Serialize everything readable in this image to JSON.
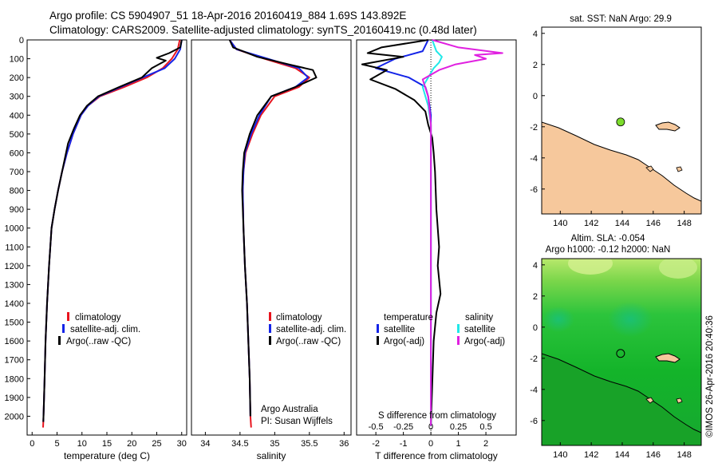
{
  "title_line1": "Argo profile: CS 5904907_51 18-Apr-2016 20160419_884 1.69S 143.892E",
  "title_line2": "Climatology: CARS2009. Satellite-adjusted climatology: synTS_20160419.nc (0.48d later)",
  "footer_vertical": "©IMOS 26-Apr-2016 20:40:36",
  "colors": {
    "climatology": "#e8141e",
    "satellite": "#1424e8",
    "argo": "#000000",
    "sat_salinity": "#20e8e8",
    "argo_salinity": "#e020e0",
    "land": "#f6c89c",
    "sea_bg": "#ffffff",
    "sla_field": "#18b818",
    "float_marker": "#7cdc2c"
  },
  "chart_data": [
    {
      "type": "line",
      "panel": "temperature",
      "xlabel": "temperature (deg C)",
      "ylabel": "",
      "xlim": [
        -1,
        31
      ],
      "ylim": [
        2100,
        0
      ],
      "xticks": [
        0,
        5,
        10,
        15,
        20,
        25,
        30
      ],
      "yticks": [
        0,
        100,
        200,
        300,
        400,
        500,
        600,
        700,
        800,
        900,
        1000,
        1100,
        1200,
        1300,
        1400,
        1500,
        1600,
        1700,
        1800,
        1900,
        2000
      ],
      "legend": [
        "climatology",
        "satellite-adj. clim.",
        "Argo(..raw -QC)"
      ],
      "series": [
        {
          "name": "climatology",
          "color_key": "climatology",
          "x": [
            29.6,
            29.2,
            28.0,
            26.2,
            23.0,
            18.5,
            13.6,
            11.2,
            9.8,
            8.2,
            7.0,
            6.0,
            5.2,
            4.5,
            3.9,
            3.4,
            3.0,
            2.7,
            2.5,
            2.35,
            2.25,
            2.2
          ],
          "y": [
            0,
            50,
            100,
            150,
            200,
            250,
            300,
            350,
            400,
            500,
            600,
            700,
            800,
            900,
            1000,
            1200,
            1400,
            1600,
            1800,
            1950,
            2030,
            2060
          ]
        },
        {
          "name": "satellite-adj. clim.",
          "color_key": "satellite",
          "x": [
            30.0,
            29.7,
            28.6,
            26.6,
            22.2,
            17.8,
            13.4,
            11.2,
            9.8,
            8.2,
            7.0,
            6.0,
            5.2,
            4.5,
            3.9,
            3.4,
            3.0,
            2.7,
            2.5,
            2.35,
            2.25
          ],
          "y": [
            0,
            50,
            100,
            150,
            200,
            250,
            300,
            350,
            400,
            500,
            600,
            700,
            800,
            900,
            1000,
            1200,
            1400,
            1600,
            1800,
            1950,
            2030
          ]
        },
        {
          "name": "Argo(..raw -QC)",
          "color_key": "argo",
          "x": [
            30.0,
            29.7,
            27.5,
            25.0,
            26.8,
            24.0,
            22.0,
            17.5,
            13.2,
            11.0,
            9.6,
            8.4,
            7.2,
            6.0,
            5.2,
            4.5,
            3.9,
            3.4,
            3.0,
            2.7,
            2.5,
            2.35,
            2.25
          ],
          "y": [
            0,
            40,
            70,
            95,
            110,
            150,
            200,
            250,
            300,
            350,
            400,
            470,
            550,
            700,
            800,
            900,
            1000,
            1200,
            1400,
            1600,
            1800,
            1950,
            2030
          ]
        }
      ]
    },
    {
      "type": "line",
      "panel": "salinity",
      "xlabel": "salinity",
      "ylabel": "",
      "xlim": [
        33.8,
        36.1
      ],
      "ylim": [
        2100,
        0
      ],
      "xticks": [
        34,
        34.5,
        35,
        35.5,
        36
      ],
      "legend": [
        "climatology",
        "satellite-adj. clim.",
        "Argo(..raw -QC)"
      ],
      "annotation": [
        "Argo Australia",
        "PI: Susan Wijffels"
      ],
      "series": [
        {
          "name": "climatology",
          "color_key": "climatology",
          "x": [
            34.35,
            34.45,
            34.85,
            35.3,
            35.5,
            35.35,
            35.0,
            34.8,
            34.68,
            34.58,
            34.55,
            34.54,
            34.55,
            34.57,
            34.6,
            34.62,
            34.64,
            34.65,
            34.66
          ],
          "y": [
            0,
            50,
            100,
            150,
            200,
            250,
            300,
            400,
            500,
            600,
            700,
            800,
            1000,
            1200,
            1400,
            1600,
            1800,
            2000,
            2060
          ]
        },
        {
          "name": "satellite-adj. clim.",
          "color_key": "satellite",
          "x": [
            34.35,
            34.45,
            34.9,
            35.35,
            35.48,
            35.3,
            34.95,
            34.78,
            34.66,
            34.57,
            34.55,
            34.54,
            34.55,
            34.57,
            34.6,
            34.62,
            34.64,
            34.65
          ],
          "y": [
            0,
            50,
            100,
            150,
            200,
            250,
            300,
            400,
            500,
            600,
            700,
            800,
            1000,
            1200,
            1400,
            1600,
            1800,
            2000
          ]
        },
        {
          "name": "Argo(..raw -QC)",
          "color_key": "argo",
          "x": [
            34.35,
            34.4,
            34.75,
            35.2,
            35.55,
            35.6,
            35.3,
            34.95,
            34.75,
            34.64,
            34.56,
            34.54,
            34.53,
            34.55,
            34.57,
            34.6,
            34.62,
            34.64,
            34.65
          ],
          "y": [
            0,
            40,
            90,
            130,
            160,
            200,
            250,
            300,
            400,
            500,
            600,
            700,
            800,
            1000,
            1200,
            1400,
            1600,
            1800,
            2000
          ]
        }
      ]
    },
    {
      "type": "line",
      "panel": "differences",
      "xlabel": "T difference from climatology",
      "xlabel_top": "S difference from climatology",
      "xlim": [
        -2.7,
        3.1
      ],
      "ylim": [
        2100,
        0
      ],
      "xticks": [
        -2,
        -1,
        0,
        1,
        2
      ],
      "xticks_S": [
        -0.5,
        -0.25,
        0,
        0.25,
        0.5
      ],
      "legend_titles": [
        "temperature",
        "salinity"
      ],
      "legend": [
        "satellite",
        "Argo(-adj)",
        "satellite",
        "Argo(-adj)"
      ],
      "series": [
        {
          "name": "satellite",
          "color_key": "satellite",
          "x": [
            -0.1,
            -0.3,
            -1.3,
            -2.0,
            -0.8,
            -0.2,
            -0.1,
            0.0,
            0.0,
            0.0,
            0.0,
            0.0,
            0.0
          ],
          "y": [
            0,
            60,
            100,
            150,
            200,
            250,
            300,
            400,
            500,
            700,
            1000,
            1500,
            2050
          ]
        },
        {
          "name": "Argo(-adj)",
          "color_key": "argo",
          "x": [
            -0.1,
            -1.8,
            -2.3,
            -1.0,
            -2.5,
            -1.6,
            -2.2,
            -1.3,
            -0.6,
            -0.2,
            -0.1,
            0.05,
            0.1,
            0.15,
            0.2,
            0.3,
            0.25,
            0.35,
            0.2,
            0.1,
            0.0
          ],
          "y": [
            0,
            40,
            70,
            90,
            130,
            160,
            210,
            260,
            320,
            380,
            450,
            520,
            600,
            700,
            900,
            1100,
            1200,
            1350,
            1450,
            1600,
            2050
          ]
        },
        {
          "name": "satellite",
          "color_key": "sat_salinity",
          "x": [
            0.05,
            0.2,
            0.4,
            0.3,
            0.1,
            -0.1,
            -0.3,
            -0.1,
            0.0,
            0.0,
            0.0,
            0.0
          ],
          "y": [
            0,
            60,
            90,
            120,
            150,
            200,
            250,
            350,
            450,
            700,
            1200,
            2050
          ]
        },
        {
          "name": "Argo(-adj)",
          "color_key": "argo_salinity",
          "x": [
            0.05,
            1.0,
            2.6,
            1.6,
            2.0,
            0.9,
            0.3,
            -0.3,
            -0.1,
            0.0,
            0.0,
            0.0
          ],
          "y": [
            0,
            40,
            70,
            80,
            100,
            130,
            160,
            210,
            300,
            450,
            900,
            2050
          ]
        }
      ]
    }
  ],
  "sst_map": {
    "title": "sat. SST: NaN Argo: 29.9",
    "xticks": [
      140,
      142,
      144,
      146,
      148
    ],
    "yticks": [
      4,
      2,
      0,
      -2,
      -4,
      -6
    ],
    "xlim": [
      138.8,
      149.1
    ],
    "ylim": [
      -7.6,
      4.4
    ],
    "float_lon": 143.892,
    "float_lat": -1.69
  },
  "sla_map": {
    "title_line1": "Altim. SLA: -0.054",
    "title_line2": "Argo h1000: -0.12 h2000: NaN",
    "xticks": [
      140,
      142,
      144,
      146,
      148
    ],
    "yticks": [
      4,
      2,
      0,
      -2,
      -4,
      -6
    ],
    "xlim": [
      138.8,
      149.1
    ],
    "ylim": [
      -7.6,
      4.4
    ],
    "float_lon": 143.892,
    "float_lat": -1.69
  }
}
